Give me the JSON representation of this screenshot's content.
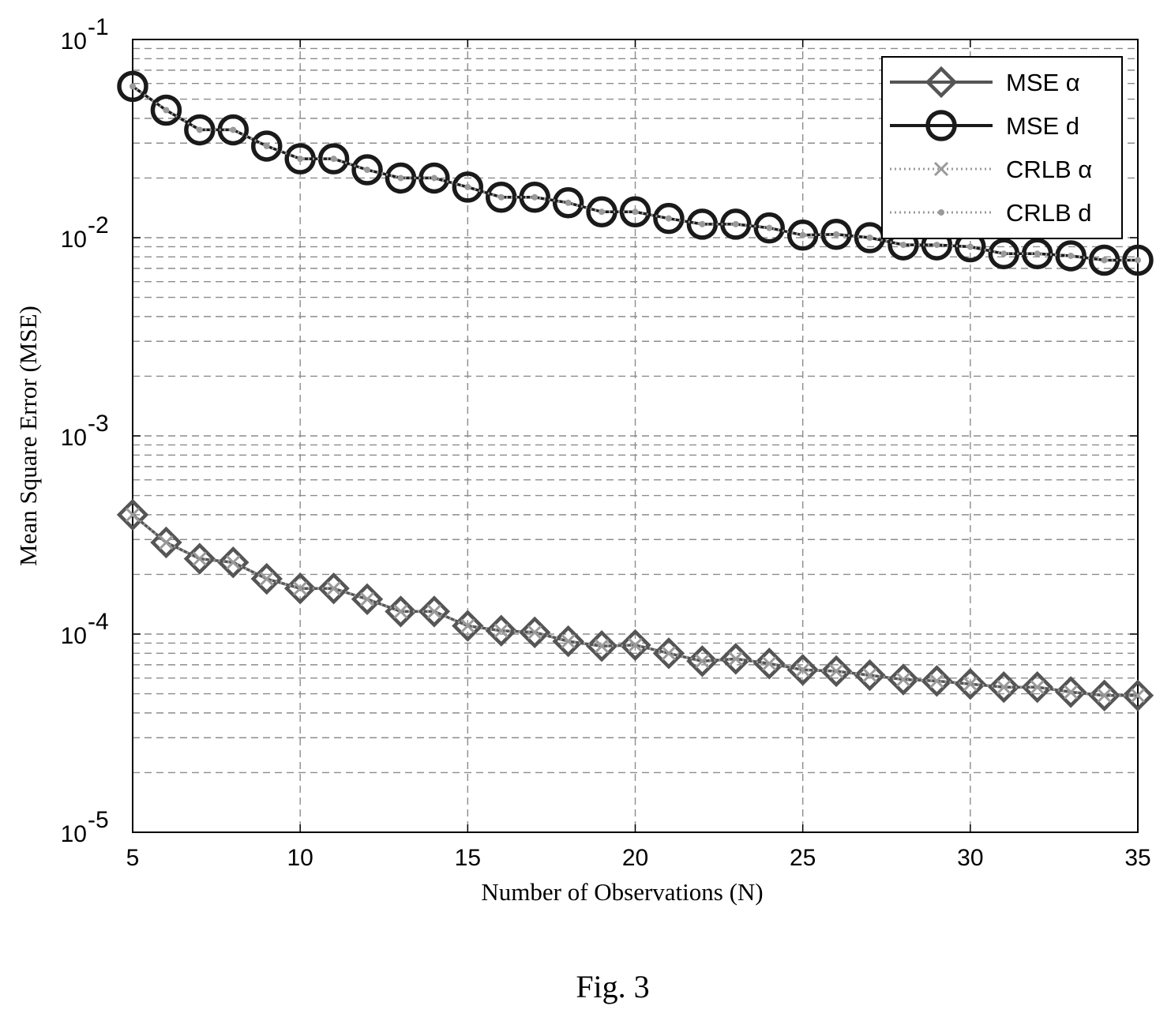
{
  "caption": "Fig. 3",
  "chart_data": {
    "type": "line",
    "xlabel": "Number of Observations (N)",
    "ylabel": "Mean Square Error (MSE)",
    "x": [
      5,
      6,
      7,
      8,
      9,
      10,
      11,
      12,
      13,
      14,
      15,
      16,
      17,
      18,
      19,
      20,
      21,
      22,
      23,
      24,
      25,
      26,
      27,
      28,
      29,
      30,
      31,
      32,
      33,
      34,
      35
    ],
    "xlim": [
      5,
      35
    ],
    "xticks": [
      5,
      10,
      15,
      20,
      25,
      30,
      35
    ],
    "ylim": [
      1e-05,
      0.1
    ],
    "yscale": "log",
    "yticks": [
      {
        "value": 0.1,
        "base": "10",
        "exp": "-1"
      },
      {
        "value": 0.01,
        "base": "10",
        "exp": "-2"
      },
      {
        "value": 0.001,
        "base": "10",
        "exp": "-3"
      },
      {
        "value": 0.0001,
        "base": "10",
        "exp": "-4"
      },
      {
        "value": 1e-05,
        "base": "10",
        "exp": "-5"
      }
    ],
    "grid": true,
    "legend_position": "top-right",
    "series": [
      {
        "name": "MSE α",
        "marker": "diamond",
        "line": "solid",
        "color": "#555555",
        "values": [
          0.0004,
          0.00029,
          0.00024,
          0.00023,
          0.00019,
          0.00017,
          0.00017,
          0.00015,
          0.00013,
          0.00013,
          0.00011,
          0.000104,
          0.000102,
          9.2e-05,
          8.7e-05,
          8.8e-05,
          8e-05,
          7.3e-05,
          7.5e-05,
          7.1e-05,
          6.6e-05,
          6.5e-05,
          6.2e-05,
          5.9e-05,
          5.8e-05,
          5.6e-05,
          5.4e-05,
          5.4e-05,
          5.1e-05,
          4.9e-05,
          4.9e-05
        ]
      },
      {
        "name": "MSE d",
        "marker": "circle",
        "line": "solid",
        "color": "#1a1a1a",
        "values": [
          0.058,
          0.044,
          0.035,
          0.035,
          0.029,
          0.025,
          0.025,
          0.022,
          0.02,
          0.02,
          0.018,
          0.016,
          0.016,
          0.015,
          0.0135,
          0.0135,
          0.0125,
          0.0117,
          0.0117,
          0.0112,
          0.0103,
          0.0104,
          0.01,
          0.0092,
          0.0092,
          0.009,
          0.0083,
          0.0083,
          0.0081,
          0.0077,
          0.0077
        ]
      },
      {
        "name": "CRLB α",
        "marker": "x",
        "line": "dotted",
        "color": "#9a9a9a",
        "values": [
          0.0004,
          0.00029,
          0.00024,
          0.00023,
          0.00019,
          0.00017,
          0.00017,
          0.00015,
          0.00013,
          0.00013,
          0.00011,
          0.000104,
          0.000102,
          9.2e-05,
          8.7e-05,
          8.8e-05,
          8e-05,
          7.3e-05,
          7.5e-05,
          7.1e-05,
          6.6e-05,
          6.5e-05,
          6.2e-05,
          5.9e-05,
          5.8e-05,
          5.6e-05,
          5.4e-05,
          5.4e-05,
          5.1e-05,
          4.9e-05,
          4.9e-05
        ]
      },
      {
        "name": "CRLB d",
        "marker": "dot",
        "line": "dotted",
        "color": "#9a9a9a",
        "values": [
          0.058,
          0.044,
          0.035,
          0.035,
          0.029,
          0.025,
          0.025,
          0.022,
          0.02,
          0.02,
          0.018,
          0.016,
          0.016,
          0.015,
          0.0135,
          0.0135,
          0.0125,
          0.0117,
          0.0117,
          0.0112,
          0.0103,
          0.0104,
          0.01,
          0.0092,
          0.0092,
          0.009,
          0.0083,
          0.0083,
          0.0081,
          0.0077,
          0.0077
        ]
      }
    ]
  }
}
